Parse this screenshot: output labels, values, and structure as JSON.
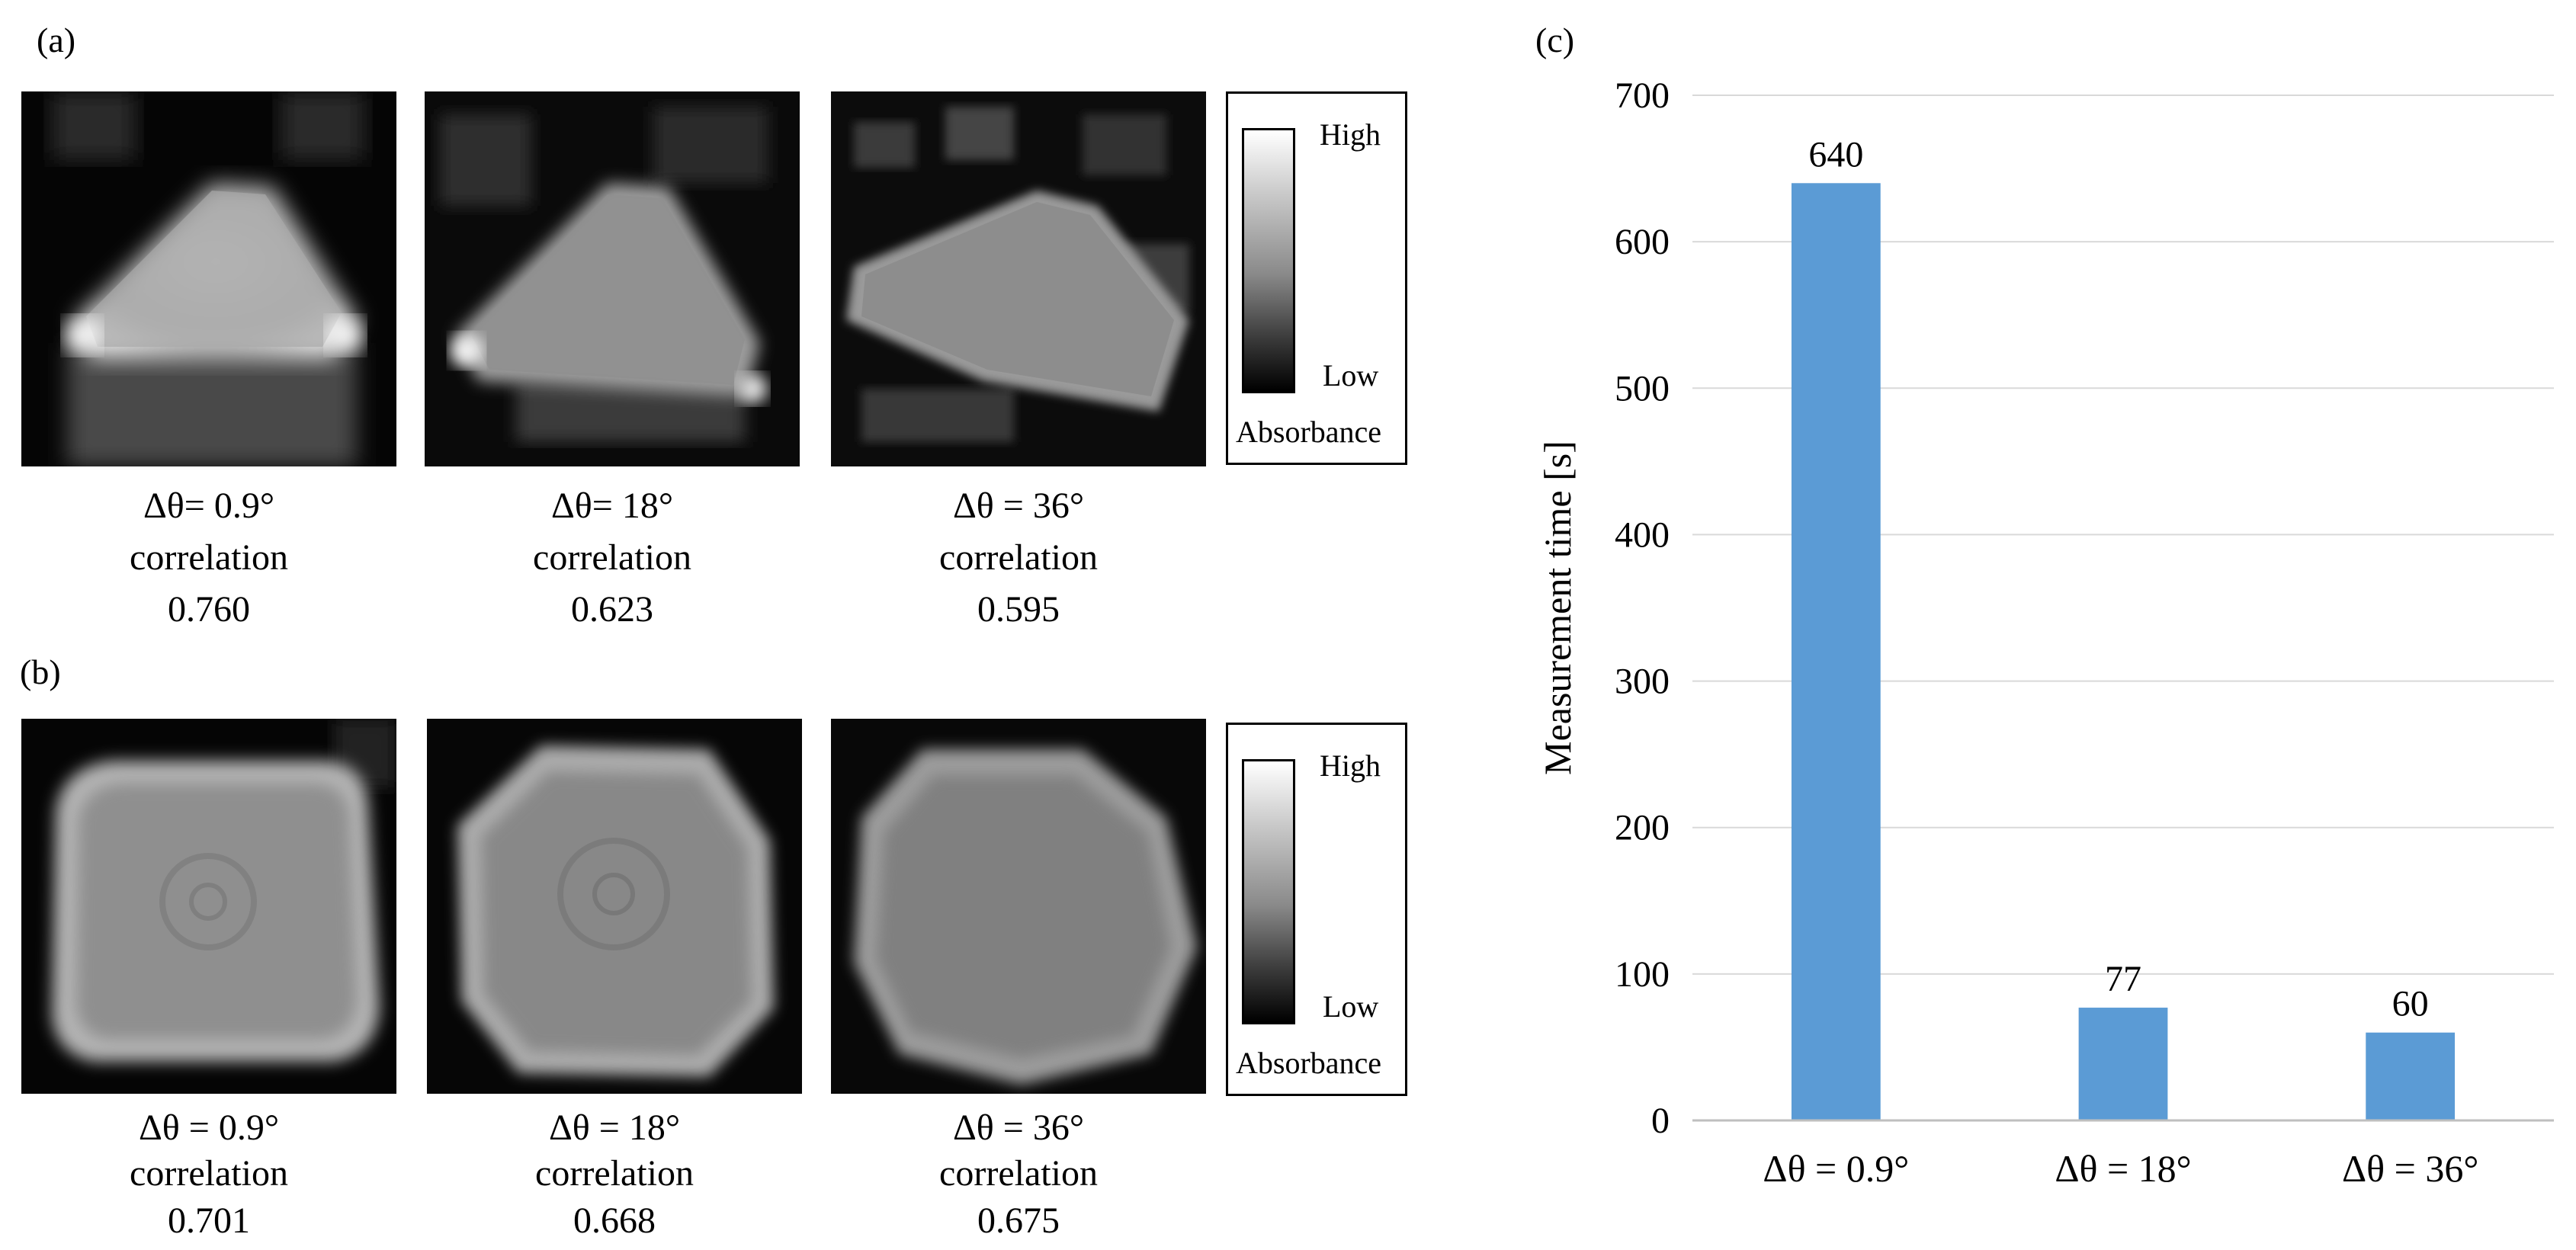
{
  "panels": {
    "a_label": "(a)",
    "b_label": "(b)",
    "c_label": "(c)"
  },
  "panel_a": [
    {
      "angle": "Δθ= 0.9°",
      "corr_label": "correlation",
      "corr_value": "0.760"
    },
    {
      "angle": "Δθ= 18°",
      "corr_label": "correlation",
      "corr_value": "0.623"
    },
    {
      "angle": "Δθ = 36°",
      "corr_label": "correlation",
      "corr_value": "0.595"
    }
  ],
  "panel_b": [
    {
      "angle": "Δθ = 0.9°",
      "corr_label": "correlation",
      "corr_value": "0.701"
    },
    {
      "angle": "Δθ = 18°",
      "corr_label": "correlation",
      "corr_value": "0.668"
    },
    {
      "angle": "Δθ = 36°",
      "corr_label": "correlation",
      "corr_value": "0.675"
    }
  ],
  "colorbar": {
    "high": "High",
    "low": "Low",
    "label": "Absorbance"
  },
  "chart_data": {
    "type": "bar",
    "categories": [
      "Δθ = 0.9°",
      "Δθ = 18°",
      "Δθ = 36°"
    ],
    "values": [
      640,
      77,
      60
    ],
    "data_labels": [
      "640",
      "77",
      "60"
    ],
    "xlabel": "",
    "ylabel": "Measurement time [s]",
    "ylim": [
      0,
      700
    ],
    "yticks": [
      0,
      100,
      200,
      300,
      400,
      500,
      600,
      700
    ],
    "grid": true,
    "bar_color": "#5b9bd5",
    "grid_color": "#d9d9d9"
  }
}
